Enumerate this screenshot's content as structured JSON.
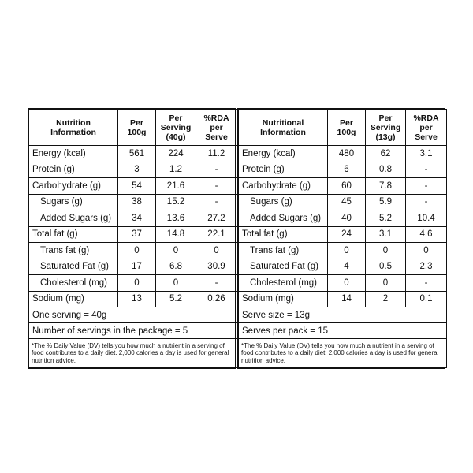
{
  "tables": [
    {
      "headers": [
        "Nutrition Information",
        "Per 100g",
        "Per Serving (40g)",
        "%RDA per Serve"
      ],
      "rows": [
        {
          "label": "Energy (kcal)",
          "sub": false,
          "v": [
            "561",
            "224",
            "11.2"
          ]
        },
        {
          "label": "Protein (g)",
          "sub": false,
          "v": [
            "3",
            "1.2",
            "-"
          ]
        },
        {
          "label": "Carbohydrate (g)",
          "sub": false,
          "v": [
            "54",
            "21.6",
            "-"
          ]
        },
        {
          "label": "Sugars (g)",
          "sub": true,
          "v": [
            "38",
            "15.2",
            "-"
          ]
        },
        {
          "label": "Added Sugars (g)",
          "sub": true,
          "v": [
            "34",
            "13.6",
            "27.2"
          ]
        },
        {
          "label": "Total fat (g)",
          "sub": false,
          "v": [
            "37",
            "14.8",
            "22.1"
          ]
        },
        {
          "label": "Trans fat (g)",
          "sub": true,
          "v": [
            "0",
            "0",
            "0"
          ]
        },
        {
          "label": "Saturated Fat (g)",
          "sub": true,
          "v": [
            "17",
            "6.8",
            "30.9"
          ]
        },
        {
          "label": "Cholesterol (mg)",
          "sub": true,
          "v": [
            "0",
            "0",
            "-"
          ]
        },
        {
          "label": "Sodium (mg)",
          "sub": false,
          "v": [
            "13",
            "5.2",
            "0.26"
          ]
        }
      ],
      "serving": "One serving = 40g",
      "servings": "Number of servings in the package = 5",
      "note": "*The % Daily Value (DV) tells you how much a nutrient in a serving of food contributes to a daily diet. 2,000 calories a day is used for general nutrition advice."
    },
    {
      "headers": [
        "Nutritional Information",
        "Per 100g",
        "Per Serving (13g)",
        "%RDA per Serve"
      ],
      "rows": [
        {
          "label": "Energy (kcal)",
          "sub": false,
          "v": [
            "480",
            "62",
            "3.1"
          ]
        },
        {
          "label": "Protein (g)",
          "sub": false,
          "v": [
            "6",
            "0.8",
            "-"
          ]
        },
        {
          "label": "Carbohydrate (g)",
          "sub": false,
          "v": [
            "60",
            "7.8",
            "-"
          ]
        },
        {
          "label": "Sugars (g)",
          "sub": true,
          "v": [
            "45",
            "5.9",
            "-"
          ]
        },
        {
          "label": "Added Sugars (g)",
          "sub": true,
          "v": [
            "40",
            "5.2",
            "10.4"
          ]
        },
        {
          "label": "Total fat (g)",
          "sub": false,
          "v": [
            "24",
            "3.1",
            "4.6"
          ]
        },
        {
          "label": "Trans fat (g)",
          "sub": true,
          "v": [
            "0",
            "0",
            "0"
          ]
        },
        {
          "label": "Saturated Fat (g)",
          "sub": true,
          "v": [
            "4",
            "0.5",
            "2.3"
          ]
        },
        {
          "label": "Cholesterol (mg)",
          "sub": true,
          "v": [
            "0",
            "0",
            "-"
          ]
        },
        {
          "label": "Sodium (mg)",
          "sub": false,
          "v": [
            "14",
            "2",
            "0.1"
          ]
        }
      ],
      "serving": "Serve size = 13g",
      "servings": "Serves per pack = 15",
      "note": "*The % Daily Value (DV) tells you how much a nutrient in a serving of food contributes to a daily diet. 2,000 calories a day is used for general nutrition advice."
    }
  ]
}
